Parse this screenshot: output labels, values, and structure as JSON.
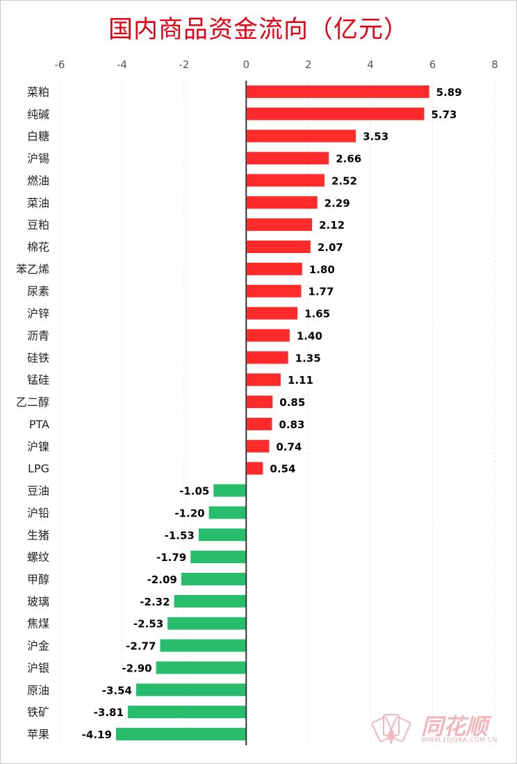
{
  "chart_data": {
    "type": "bar",
    "orientation": "horizontal",
    "title": "国内商品资金流向（亿元）",
    "xlim": [
      -6,
      8
    ],
    "xticks": [
      -6,
      -4,
      -2,
      0,
      2,
      4,
      6,
      8
    ],
    "grid": true,
    "colors": {
      "positive": "#ff2a2a",
      "negative": "#28bd6c"
    },
    "categories": [
      "菜粕",
      "纯碱",
      "白糖",
      "沪锡",
      "燃油",
      "菜油",
      "豆粕",
      "棉花",
      "苯乙烯",
      "尿素",
      "沪锌",
      "沥青",
      "硅铁",
      "锰硅",
      "乙二醇",
      "PTA",
      "沪镍",
      "LPG",
      "豆油",
      "沪铅",
      "生猪",
      "螺纹",
      "甲醇",
      "玻璃",
      "焦煤",
      "沪金",
      "沪银",
      "原油",
      "铁矿",
      "苹果"
    ],
    "values": [
      5.89,
      5.73,
      3.53,
      2.66,
      2.52,
      2.29,
      2.12,
      2.07,
      1.8,
      1.77,
      1.65,
      1.4,
      1.35,
      1.11,
      0.85,
      0.83,
      0.74,
      0.54,
      -1.05,
      -1.2,
      -1.53,
      -1.79,
      -2.09,
      -2.32,
      -2.53,
      -2.77,
      -2.9,
      -3.54,
      -3.81,
      -4.19
    ],
    "value_labels": [
      "5.89",
      "5.73",
      "3.53",
      "2.66",
      "2.52",
      "2.29",
      "2.12",
      "2.07",
      "1.80",
      "1.77",
      "1.65",
      "1.40",
      "1.35",
      "1.11",
      "0.85",
      "0.83",
      "0.74",
      "0.54",
      "-1.05",
      "-1.20",
      "-1.53",
      "-1.79",
      "-2.09",
      "-2.32",
      "-2.53",
      "-2.77",
      "-2.90",
      "-3.54",
      "-3.81",
      "-4.19"
    ]
  },
  "watermark": {
    "brand": "同花顺",
    "url": "WWW.10JQKA.COM.CN",
    "logo": "spade-card-fan-icon"
  }
}
